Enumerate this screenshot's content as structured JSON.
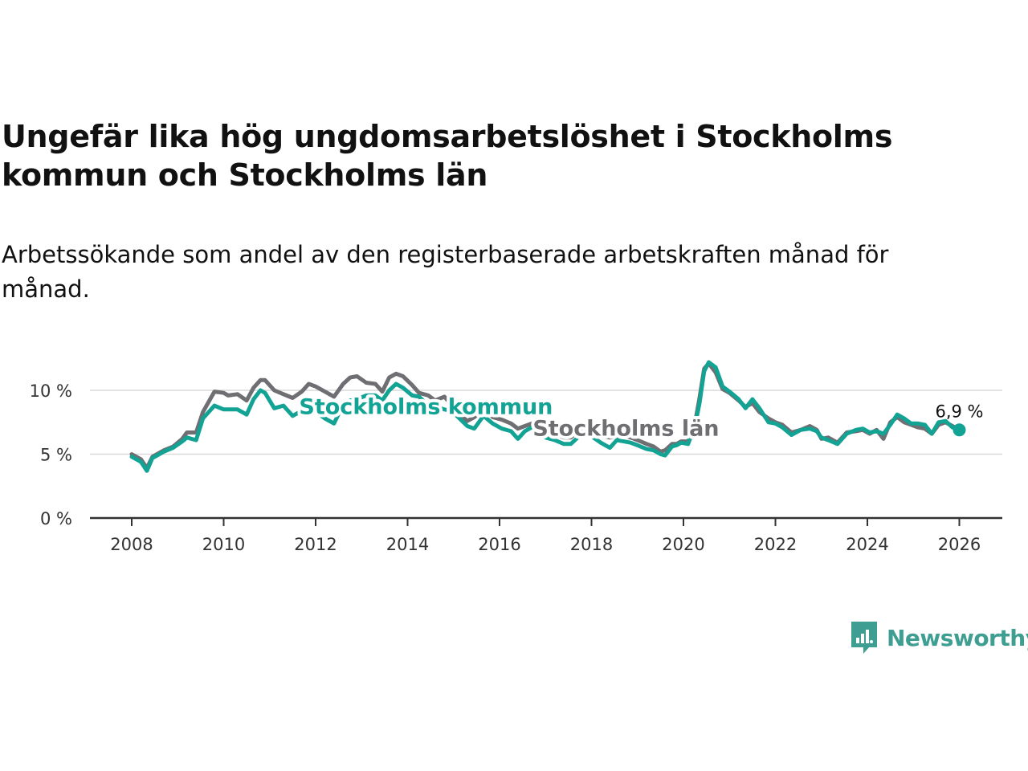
{
  "title": "Ungefär lika hög ungdomsarbetslöshet i Stockholms kommun och Stockholms län",
  "subtitle": "Arbetssökande som andel av den registerbaserade arbetskraften månad för månad.",
  "brand": {
    "name": "Newsworthy",
    "icon": "newsworthy-logo-icon",
    "color": "#3f9e92"
  },
  "chart_data": {
    "type": "line",
    "title": "Ungefär lika hög ungdomsarbetslöshet i Stockholms kommun och Stockholms län",
    "xlabel": "",
    "ylabel": "",
    "xlim": [
      2007.8,
      2026.95
    ],
    "ylim": [
      0,
      12.5
    ],
    "grid": true,
    "y_ticks": [
      0,
      5,
      10
    ],
    "y_tick_labels": [
      "0 %",
      "5 %",
      "10 %"
    ],
    "x_ticks": [
      2008,
      2010,
      2012,
      2014,
      2016,
      2018,
      2020,
      2022,
      2024,
      2026
    ],
    "x_tick_labels": [
      "2008",
      "2010",
      "2012",
      "2014",
      "2016",
      "2018",
      "2020",
      "2022",
      "2024",
      "2026"
    ],
    "series": [
      {
        "name": "Stockholms län",
        "label": "Stockholms län",
        "color": "#6e6e73",
        "points": [
          [
            2008.0,
            5.0
          ],
          [
            2008.2,
            4.6
          ],
          [
            2008.33,
            3.9
          ],
          [
            2008.45,
            4.8
          ],
          [
            2008.7,
            5.3
          ],
          [
            2008.9,
            5.6
          ],
          [
            2009.1,
            6.2
          ],
          [
            2009.2,
            6.7
          ],
          [
            2009.4,
            6.7
          ],
          [
            2009.55,
            8.3
          ],
          [
            2009.8,
            9.9
          ],
          [
            2010.0,
            9.8
          ],
          [
            2010.1,
            9.6
          ],
          [
            2010.3,
            9.7
          ],
          [
            2010.5,
            9.2
          ],
          [
            2010.65,
            10.2
          ],
          [
            2010.8,
            10.8
          ],
          [
            2010.9,
            10.8
          ],
          [
            2011.1,
            10.0
          ],
          [
            2011.3,
            9.7
          ],
          [
            2011.5,
            9.4
          ],
          [
            2011.7,
            9.9
          ],
          [
            2011.85,
            10.5
          ],
          [
            2012.0,
            10.3
          ],
          [
            2012.2,
            9.9
          ],
          [
            2012.4,
            9.5
          ],
          [
            2012.6,
            10.5
          ],
          [
            2012.75,
            11.0
          ],
          [
            2012.9,
            11.1
          ],
          [
            2013.1,
            10.6
          ],
          [
            2013.3,
            10.5
          ],
          [
            2013.45,
            9.9
          ],
          [
            2013.6,
            11.0
          ],
          [
            2013.75,
            11.3
          ],
          [
            2013.9,
            11.1
          ],
          [
            2014.1,
            10.4
          ],
          [
            2014.25,
            9.8
          ],
          [
            2014.45,
            9.6
          ],
          [
            2014.6,
            9.2
          ],
          [
            2014.8,
            9.5
          ],
          [
            2014.95,
            8.9
          ],
          [
            2015.1,
            8.2
          ],
          [
            2015.3,
            7.6
          ],
          [
            2015.45,
            7.9
          ],
          [
            2015.65,
            8.5
          ],
          [
            2015.85,
            7.9
          ],
          [
            2016.05,
            7.7
          ],
          [
            2016.25,
            7.4
          ],
          [
            2016.4,
            7.0
          ],
          [
            2016.55,
            7.2
          ],
          [
            2016.7,
            7.4
          ],
          [
            2016.85,
            7.2
          ],
          [
            2017.0,
            6.9
          ],
          [
            2017.2,
            6.6
          ],
          [
            2017.4,
            6.3
          ],
          [
            2017.55,
            6.3
          ],
          [
            2017.7,
            6.8
          ],
          [
            2017.85,
            7.0
          ],
          [
            2018.0,
            6.8
          ],
          [
            2018.2,
            6.4
          ],
          [
            2018.4,
            6.3
          ],
          [
            2018.55,
            6.4
          ],
          [
            2018.7,
            6.4
          ],
          [
            2018.85,
            6.3
          ],
          [
            2019.0,
            6.1
          ],
          [
            2019.2,
            5.8
          ],
          [
            2019.35,
            5.6
          ],
          [
            2019.5,
            5.2
          ],
          [
            2019.6,
            5.3
          ],
          [
            2019.75,
            5.8
          ],
          [
            2019.85,
            5.8
          ],
          [
            2019.95,
            6.0
          ],
          [
            2020.1,
            6.0
          ],
          [
            2020.25,
            7.4
          ],
          [
            2020.35,
            9.4
          ],
          [
            2020.45,
            11.7
          ],
          [
            2020.55,
            12.1
          ],
          [
            2020.7,
            11.4
          ],
          [
            2020.85,
            10.1
          ],
          [
            2021.0,
            9.8
          ],
          [
            2021.2,
            9.2
          ],
          [
            2021.35,
            8.7
          ],
          [
            2021.5,
            9.0
          ],
          [
            2021.65,
            8.3
          ],
          [
            2021.85,
            7.8
          ],
          [
            2022.0,
            7.5
          ],
          [
            2022.15,
            7.3
          ],
          [
            2022.35,
            6.7
          ],
          [
            2022.55,
            6.9
          ],
          [
            2022.75,
            7.2
          ],
          [
            2022.9,
            6.9
          ],
          [
            2023.0,
            6.2
          ],
          [
            2023.15,
            6.3
          ],
          [
            2023.35,
            5.9
          ],
          [
            2023.55,
            6.7
          ],
          [
            2023.75,
            6.8
          ],
          [
            2023.9,
            6.9
          ],
          [
            2024.05,
            6.6
          ],
          [
            2024.2,
            6.9
          ],
          [
            2024.35,
            6.2
          ],
          [
            2024.5,
            7.5
          ],
          [
            2024.65,
            7.9
          ],
          [
            2024.8,
            7.5
          ],
          [
            2024.95,
            7.3
          ],
          [
            2025.1,
            7.1
          ],
          [
            2025.25,
            7.0
          ],
          [
            2025.4,
            6.6
          ],
          [
            2025.55,
            7.3
          ],
          [
            2025.7,
            7.5
          ],
          [
            2025.85,
            7.2
          ],
          [
            2026.0,
            6.9
          ]
        ]
      },
      {
        "name": "Stockholms kommun",
        "label": "Stockholms kommun",
        "color": "#12a394",
        "points": [
          [
            2008.0,
            4.8
          ],
          [
            2008.2,
            4.4
          ],
          [
            2008.33,
            3.7
          ],
          [
            2008.45,
            4.7
          ],
          [
            2008.7,
            5.2
          ],
          [
            2008.9,
            5.5
          ],
          [
            2009.1,
            6.0
          ],
          [
            2009.2,
            6.3
          ],
          [
            2009.4,
            6.1
          ],
          [
            2009.55,
            7.8
          ],
          [
            2009.8,
            8.8
          ],
          [
            2010.0,
            8.5
          ],
          [
            2010.1,
            8.5
          ],
          [
            2010.3,
            8.5
          ],
          [
            2010.5,
            8.1
          ],
          [
            2010.65,
            9.3
          ],
          [
            2010.8,
            10.0
          ],
          [
            2010.9,
            9.8
          ],
          [
            2011.1,
            8.6
          ],
          [
            2011.3,
            8.8
          ],
          [
            2011.5,
            8.0
          ],
          [
            2011.7,
            8.4
          ],
          [
            2011.85,
            8.3
          ],
          [
            2012.0,
            8.3
          ],
          [
            2012.2,
            7.8
          ],
          [
            2012.4,
            7.4
          ],
          [
            2012.6,
            8.9
          ],
          [
            2012.75,
            9.2
          ],
          [
            2012.9,
            9.3
          ],
          [
            2013.1,
            9.6
          ],
          [
            2013.3,
            9.6
          ],
          [
            2013.45,
            9.2
          ],
          [
            2013.6,
            10.0
          ],
          [
            2013.75,
            10.5
          ],
          [
            2013.9,
            10.2
          ],
          [
            2014.1,
            9.6
          ],
          [
            2014.25,
            9.5
          ],
          [
            2014.45,
            8.8
          ],
          [
            2014.6,
            8.7
          ],
          [
            2014.8,
            8.5
          ],
          [
            2014.95,
            8.4
          ],
          [
            2015.1,
            7.9
          ],
          [
            2015.3,
            7.2
          ],
          [
            2015.45,
            7.0
          ],
          [
            2015.65,
            8.0
          ],
          [
            2015.85,
            7.4
          ],
          [
            2016.05,
            7.0
          ],
          [
            2016.25,
            6.8
          ],
          [
            2016.4,
            6.2
          ],
          [
            2016.55,
            6.8
          ],
          [
            2016.7,
            7.1
          ],
          [
            2016.85,
            6.8
          ],
          [
            2017.0,
            6.3
          ],
          [
            2017.2,
            6.1
          ],
          [
            2017.4,
            5.8
          ],
          [
            2017.55,
            5.8
          ],
          [
            2017.7,
            6.3
          ],
          [
            2017.85,
            6.6
          ],
          [
            2018.0,
            6.4
          ],
          [
            2018.2,
            5.9
          ],
          [
            2018.4,
            5.5
          ],
          [
            2018.55,
            6.1
          ],
          [
            2018.7,
            6.0
          ],
          [
            2018.85,
            5.9
          ],
          [
            2019.0,
            5.7
          ],
          [
            2019.2,
            5.4
          ],
          [
            2019.35,
            5.3
          ],
          [
            2019.5,
            5.0
          ],
          [
            2019.6,
            4.9
          ],
          [
            2019.75,
            5.6
          ],
          [
            2019.85,
            5.7
          ],
          [
            2019.95,
            5.9
          ],
          [
            2020.1,
            5.8
          ],
          [
            2020.25,
            7.2
          ],
          [
            2020.35,
            9.0
          ],
          [
            2020.45,
            11.5
          ],
          [
            2020.55,
            12.2
          ],
          [
            2020.7,
            11.8
          ],
          [
            2020.85,
            10.3
          ],
          [
            2021.0,
            9.9
          ],
          [
            2021.2,
            9.3
          ],
          [
            2021.35,
            8.6
          ],
          [
            2021.5,
            9.3
          ],
          [
            2021.65,
            8.6
          ],
          [
            2021.85,
            7.5
          ],
          [
            2022.0,
            7.4
          ],
          [
            2022.15,
            7.1
          ],
          [
            2022.35,
            6.5
          ],
          [
            2022.55,
            6.9
          ],
          [
            2022.75,
            7.0
          ],
          [
            2022.9,
            6.8
          ],
          [
            2023.0,
            6.3
          ],
          [
            2023.15,
            6.1
          ],
          [
            2023.35,
            5.8
          ],
          [
            2023.55,
            6.6
          ],
          [
            2023.75,
            6.9
          ],
          [
            2023.9,
            7.0
          ],
          [
            2024.05,
            6.7
          ],
          [
            2024.2,
            6.8
          ],
          [
            2024.35,
            6.6
          ],
          [
            2024.5,
            7.3
          ],
          [
            2024.65,
            8.1
          ],
          [
            2024.8,
            7.8
          ],
          [
            2024.95,
            7.4
          ],
          [
            2025.1,
            7.4
          ],
          [
            2025.25,
            7.3
          ],
          [
            2025.4,
            6.6
          ],
          [
            2025.55,
            7.5
          ],
          [
            2025.7,
            7.6
          ],
          [
            2025.85,
            7.1
          ],
          [
            2026.0,
            6.9
          ]
        ]
      }
    ],
    "annotations": [
      {
        "series": "Stockholms kommun",
        "text": "Stockholms kommun",
        "x": 2014.4,
        "y": 8.7
      },
      {
        "series": "Stockholms län",
        "text": "Stockholms län",
        "x": 2018.75,
        "y": 7.0
      },
      {
        "text": "6,9 %",
        "x": 2026.0,
        "y": 6.9
      }
    ],
    "last_value_label": "6,9 %"
  }
}
